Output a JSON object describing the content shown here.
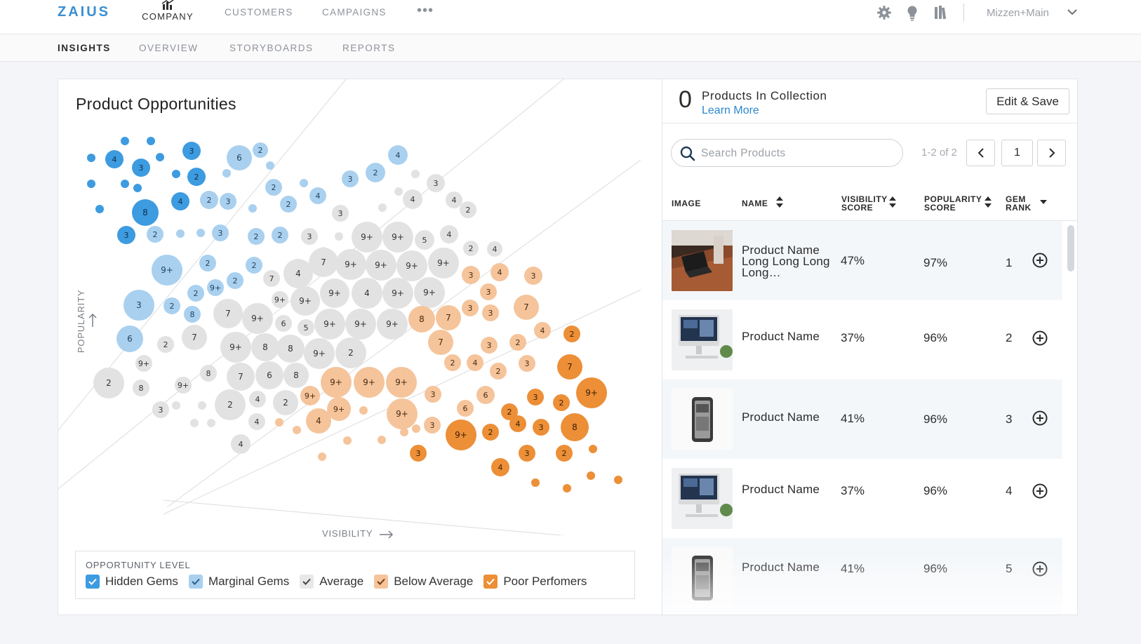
{
  "brand": {
    "logo": "ZAIUS",
    "accent": "#3a8fd2"
  },
  "topnav": {
    "company_label": "COMPANY",
    "links": [
      "CUSTOMERS",
      "CAMPAIGNS"
    ],
    "more": "•••",
    "icons": [
      "gear-icon",
      "lightbulb-icon",
      "library-icon"
    ],
    "account": "Mizzen+Main"
  },
  "subnav": {
    "tabs": [
      "INSIGHTS",
      "OVERVIEW",
      "STORYBOARDS",
      "REPORTS"
    ],
    "active": "INSIGHTS"
  },
  "chart": {
    "title": "Product Opportunities",
    "x_axis": "VISIBILITY",
    "y_axis": "POPULARITY",
    "colors": {
      "hidden_gems": "#3d9be0",
      "marginal_gems": "#a9d0ef",
      "average": "#e2e2e2",
      "below_average": "#f5c49b",
      "poor_performers": "#ec8f37"
    },
    "legend": {
      "title": "OPPORTUNITY LEVEL",
      "items": [
        "Hidden Gems",
        "Marginal Gems",
        "Average",
        "Below Average",
        "Poor Perfomers"
      ]
    }
  },
  "chart_data": {
    "type": "scatter",
    "description_units": "bubble label = product count",
    "series": [
      {
        "name": "Hidden Gems",
        "labels": [
          "4",
          "3",
          "3",
          "2",
          "8",
          "4",
          "3"
        ]
      },
      {
        "name": "Marginal Gems",
        "labels": [
          "6",
          "2",
          "4",
          "2",
          "3",
          "2",
          "4",
          "2",
          "3",
          "2",
          "2",
          "3",
          "2",
          "2",
          "9+",
          "2",
          "2",
          "2",
          "2",
          "9+",
          "3",
          "2",
          "8"
        ]
      },
      {
        "name": "Average",
        "labels": [
          "3",
          "4",
          "4",
          "2",
          "3",
          "9+",
          "9+",
          "5",
          "4",
          "2",
          "4",
          "3",
          "7",
          "9+",
          "9+",
          "9+",
          "9+",
          "4",
          "7",
          "9+",
          "4",
          "9+",
          "9+",
          "9+",
          "9+",
          "7",
          "9+",
          "6",
          "5",
          "9+",
          "9+",
          "9+",
          "7",
          "9+",
          "8",
          "8",
          "9+",
          "2",
          "2",
          "9+",
          "2",
          "8",
          "8",
          "7",
          "6",
          "8",
          "9+",
          "2",
          "4",
          "2",
          "4"
        ]
      },
      {
        "name": "Below Average",
        "labels": [
          "3",
          "4",
          "3",
          "3",
          "3",
          "3",
          "7",
          "8",
          "7",
          "4",
          "7",
          "3",
          "2",
          "2",
          "4",
          "2",
          "3",
          "9+",
          "9+",
          "9+",
          "9+",
          "9+",
          "3",
          "6",
          "6",
          "9+",
          "4",
          "3",
          "6",
          "3"
        ]
      },
      {
        "name": "Poor Performers",
        "labels": [
          "2",
          "7",
          "3",
          "2",
          "9+",
          "2",
          "4",
          "3",
          "8",
          "9+",
          "2",
          "3",
          "3",
          "2",
          "4"
        ]
      }
    ]
  },
  "collection": {
    "count": "0",
    "title": "Products In Collection",
    "learn_more": "Learn More",
    "edit_button": "Edit & Save"
  },
  "table": {
    "search_placeholder": "Search Products",
    "page_info": "1-2 of 2",
    "page_number": "1",
    "headers": {
      "image": "IMAGE",
      "name": "NAME",
      "visibility_1": "VISIBILITY",
      "visibility_2": "SCORE",
      "popularity_1": "POPULARITY",
      "popularity_2": "SCORE",
      "gem_1": "GEM",
      "gem_2": "RANK"
    },
    "rows": [
      {
        "name_1": "Product Name",
        "name_2": "Long Long Long",
        "name_3": "Long…",
        "visibility": "47%",
        "popularity": "97%",
        "rank": "1",
        "image": "laptop-desk"
      },
      {
        "name_1": "Product Name",
        "visibility": "37%",
        "popularity": "96%",
        "rank": "2",
        "image": "imac"
      },
      {
        "name_1": "Product Name",
        "visibility": "41%",
        "popularity": "96%",
        "rank": "3",
        "image": "phone-case"
      },
      {
        "name_1": "Product Name",
        "visibility": "37%",
        "popularity": "96%",
        "rank": "4",
        "image": "imac"
      },
      {
        "name_1": "Product Name",
        "visibility": "41%",
        "popularity": "96%",
        "rank": "5",
        "image": "phone-case"
      }
    ]
  }
}
